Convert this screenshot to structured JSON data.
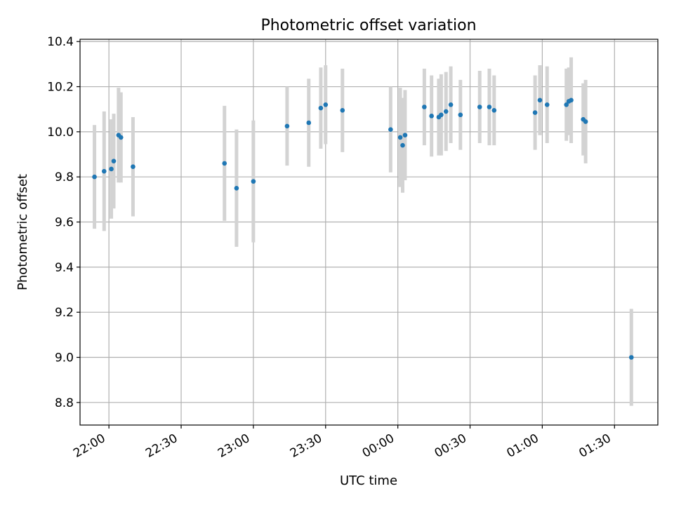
{
  "chart_data": {
    "type": "scatter",
    "title": "Photometric offset variation",
    "xlabel": "UTC time",
    "ylabel": "Photometric offset",
    "grid": true,
    "x_is_time": true,
    "xlim": [
      "21:48",
      "01:48"
    ],
    "ylim": [
      8.7,
      10.41
    ],
    "x_ticks": [
      "22:00",
      "22:30",
      "23:00",
      "23:30",
      "00:00",
      "00:30",
      "01:00",
      "01:30"
    ],
    "y_ticks": [
      "8.8",
      "9.0",
      "9.2",
      "9.4",
      "9.6",
      "9.8",
      "10.0",
      "10.2",
      "10.4"
    ],
    "marker_color": "#1f77b4",
    "errorbar_color": "#d3d3d3",
    "points": [
      {
        "t": "21:54",
        "y": 9.8,
        "err": 0.23
      },
      {
        "t": "21:58",
        "y": 9.825,
        "err": 0.265
      },
      {
        "t": "22:01",
        "y": 9.835,
        "err": 0.22
      },
      {
        "t": "22:02",
        "y": 9.87,
        "err": 0.21
      },
      {
        "t": "22:04",
        "y": 9.985,
        "err": 0.21
      },
      {
        "t": "22:05",
        "y": 9.975,
        "err": 0.2
      },
      {
        "t": "22:10",
        "y": 9.845,
        "err": 0.22
      },
      {
        "t": "22:48",
        "y": 9.86,
        "err": 0.255
      },
      {
        "t": "22:53",
        "y": 9.75,
        "err": 0.26
      },
      {
        "t": "23:00",
        "y": 9.78,
        "err": 0.27
      },
      {
        "t": "23:14",
        "y": 10.025,
        "err": 0.175
      },
      {
        "t": "23:23",
        "y": 10.04,
        "err": 0.195
      },
      {
        "t": "23:28",
        "y": 10.105,
        "err": 0.18
      },
      {
        "t": "23:30",
        "y": 10.12,
        "err": 0.175
      },
      {
        "t": "23:37",
        "y": 10.095,
        "err": 0.185
      },
      {
        "t": "23:57",
        "y": 10.01,
        "err": 0.19
      },
      {
        "t": "00:01",
        "y": 9.975,
        "err": 0.22
      },
      {
        "t": "00:02",
        "y": 9.94,
        "err": 0.21
      },
      {
        "t": "00:03",
        "y": 9.985,
        "err": 0.2
      },
      {
        "t": "00:11",
        "y": 10.11,
        "err": 0.17
      },
      {
        "t": "00:14",
        "y": 10.07,
        "err": 0.18
      },
      {
        "t": "00:17",
        "y": 10.065,
        "err": 0.17
      },
      {
        "t": "00:18",
        "y": 10.075,
        "err": 0.18
      },
      {
        "t": "00:20",
        "y": 10.09,
        "err": 0.175
      },
      {
        "t": "00:22",
        "y": 10.12,
        "err": 0.17
      },
      {
        "t": "00:26",
        "y": 10.075,
        "err": 0.155
      },
      {
        "t": "00:34",
        "y": 10.11,
        "err": 0.16
      },
      {
        "t": "00:38",
        "y": 10.11,
        "err": 0.17
      },
      {
        "t": "00:40",
        "y": 10.095,
        "err": 0.155
      },
      {
        "t": "00:57",
        "y": 10.085,
        "err": 0.165
      },
      {
        "t": "00:59",
        "y": 10.14,
        "err": 0.155
      },
      {
        "t": "01:02",
        "y": 10.12,
        "err": 0.17
      },
      {
        "t": "01:10",
        "y": 10.12,
        "err": 0.16
      },
      {
        "t": "01:11",
        "y": 10.135,
        "err": 0.15
      },
      {
        "t": "01:12",
        "y": 10.14,
        "err": 0.19
      },
      {
        "t": "01:17",
        "y": 10.055,
        "err": 0.16
      },
      {
        "t": "01:18",
        "y": 10.045,
        "err": 0.185
      },
      {
        "t": "01:37",
        "y": 9.0,
        "err": 0.215
      }
    ]
  }
}
